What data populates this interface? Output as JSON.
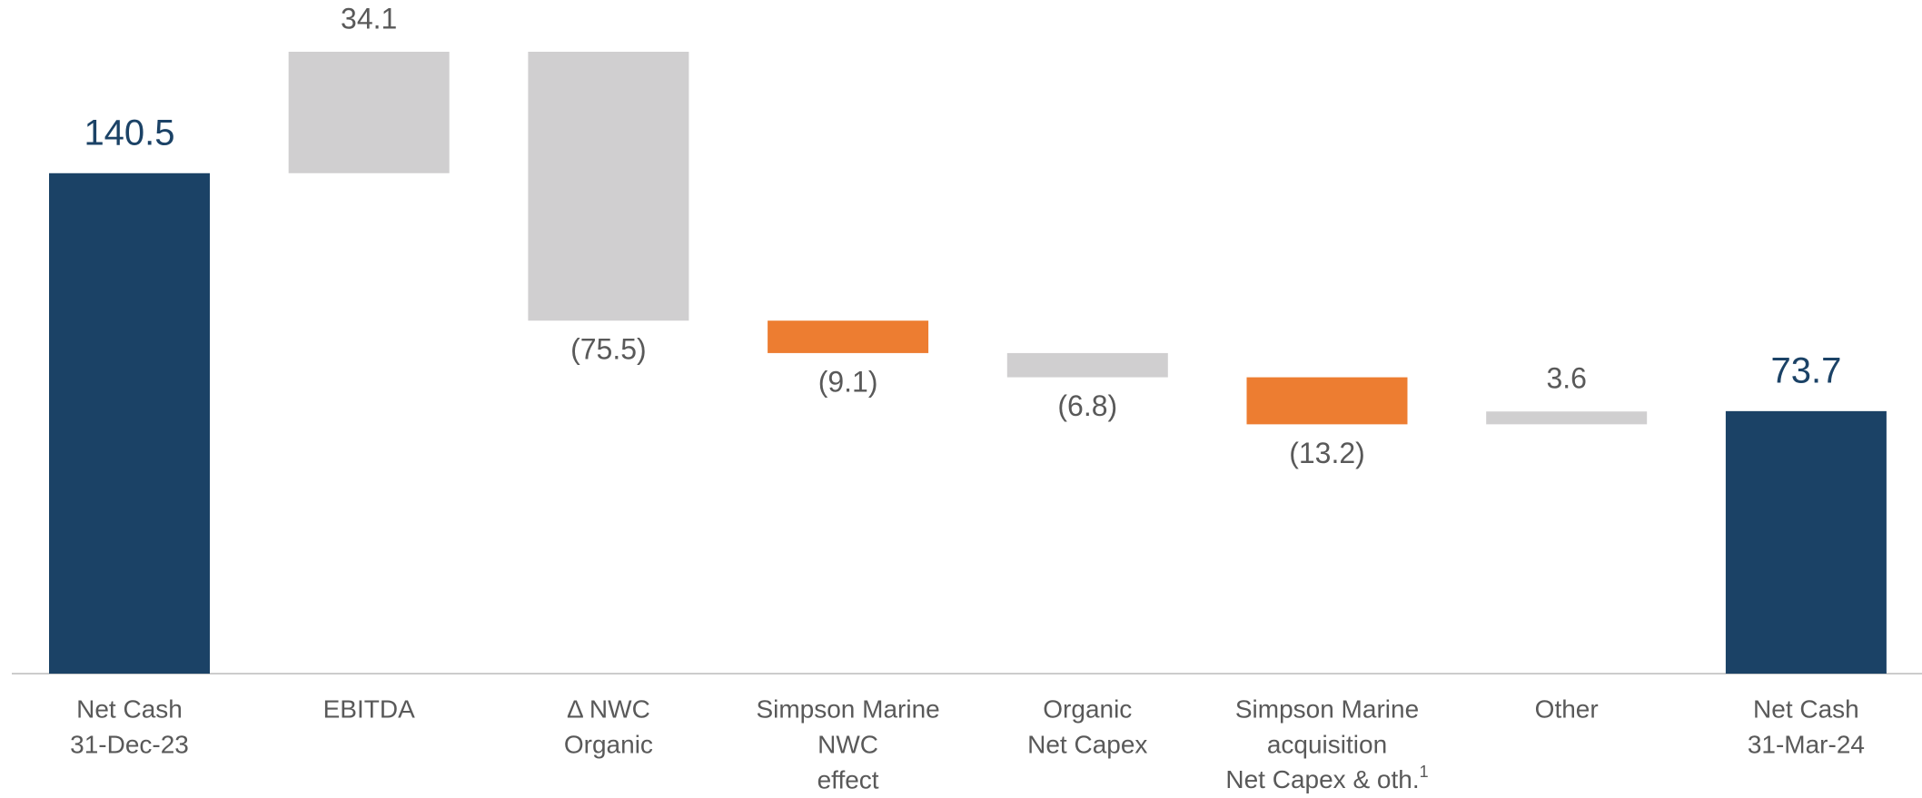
{
  "chart_data": {
    "type": "waterfall",
    "categories": [
      [
        "Net Cash",
        "31-Dec-23"
      ],
      [
        "EBITDA"
      ],
      [
        "Δ NWC",
        "Organic"
      ],
      [
        "Simpson Marine",
        "NWC",
        "effect"
      ],
      [
        "Organic",
        "Net Capex"
      ],
      [
        "Simpson Marine",
        "acquisition",
        {
          "text": "Net Capex & oth.",
          "sup": "1"
        }
      ],
      [
        "Other"
      ],
      [
        "Net Cash",
        "31-Mar-24"
      ]
    ],
    "values": [
      140.5,
      34.1,
      -75.5,
      -9.1,
      -6.8,
      -13.2,
      3.6,
      73.7
    ],
    "value_labels": [
      "140.5",
      "34.1",
      "(75.5)",
      "(9.1)",
      "(6.8)",
      "(13.2)",
      "3.6",
      "73.7"
    ],
    "is_total": [
      true,
      false,
      false,
      false,
      false,
      false,
      false,
      true
    ],
    "colors": [
      "#1b4266",
      "#d0cfd0",
      "#d0cfd0",
      "#ed7d31",
      "#d0cfd0",
      "#ed7d31",
      "#d0cfd0",
      "#1b4266"
    ]
  }
}
